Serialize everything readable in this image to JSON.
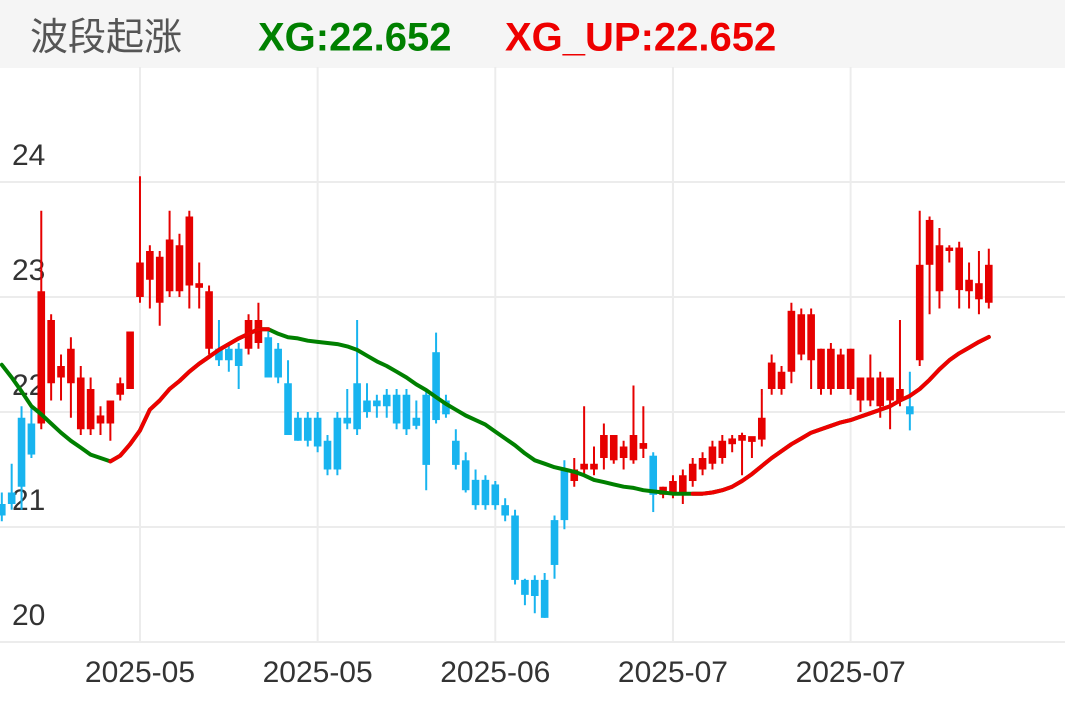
{
  "chart_data": {
    "type": "candlestick",
    "title": "波段起涨",
    "legend": [
      {
        "label": "XG:22.652",
        "color": "#008000"
      },
      {
        "label": "XG_UP:22.652",
        "color": "#ee0000"
      }
    ],
    "categories": [
      null,
      null,
      null,
      null,
      null,
      null,
      null,
      null,
      null,
      null,
      null,
      null,
      null,
      null,
      "2025-05",
      null,
      null,
      null,
      null,
      null,
      null,
      null,
      null,
      null,
      null,
      null,
      null,
      null,
      null,
      null,
      null,
      null,
      "2025-05",
      null,
      null,
      null,
      null,
      null,
      null,
      null,
      null,
      null,
      null,
      null,
      null,
      null,
      null,
      null,
      null,
      null,
      "2025-06",
      null,
      null,
      null,
      null,
      null,
      null,
      null,
      null,
      null,
      null,
      null,
      null,
      null,
      null,
      null,
      null,
      null,
      "2025-07",
      null,
      null,
      null,
      null,
      null,
      null,
      null,
      null,
      null,
      null,
      null,
      null,
      null,
      null,
      null,
      null,
      null,
      "2025-07",
      null,
      null,
      null,
      null,
      null,
      null,
      null,
      null,
      null,
      null,
      null,
      null,
      null,
      null
    ],
    "open": [
      21.2,
      21.3,
      21.95,
      21.9,
      21.9,
      22.25,
      22.3,
      22.25,
      21.85,
      21.85,
      21.9,
      21.9,
      22.15,
      22.2,
      23.0,
      23.15,
      22.95,
      23.05,
      23.05,
      23.1,
      23.08,
      22.55,
      22.55,
      22.55,
      22.55,
      22.55,
      22.6,
      22.65,
      22.55,
      22.25,
      21.95,
      21.95,
      21.95,
      21.75,
      21.95,
      21.95,
      22.25,
      22.1,
      22.1,
      22.15,
      22.15,
      22.15,
      21.95,
      22.15,
      22.52,
      22.1,
      21.75,
      21.58,
      21.41,
      21.41,
      21.37,
      21.19,
      21.1,
      20.54,
      20.54,
      20.54,
      21.06,
      21.5,
      21.4,
      21.5,
      21.5,
      21.6,
      21.58,
      21.6,
      21.58,
      21.68,
      21.62,
      21.28,
      21.3,
      21.3,
      21.4,
      21.5,
      21.55,
      21.6,
      21.72,
      21.75,
      21.74,
      21.76,
      22.2,
      22.2,
      22.35,
      22.5,
      22.45,
      22.2,
      22.2,
      22.2,
      22.2,
      22.1,
      22.1,
      22.05,
      22.1,
      22.1,
      22.05,
      22.45,
      23.28,
      23.05,
      23.4,
      23.06,
      23.05,
      22.98,
      22.95
    ],
    "high": [
      21.3,
      21.55,
      22.05,
      22.05,
      23.75,
      22.85,
      22.5,
      22.65,
      22.4,
      22.3,
      22.05,
      22.1,
      22.3,
      22.7,
      24.05,
      23.45,
      23.4,
      23.75,
      23.55,
      23.75,
      23.3,
      23.1,
      22.8,
      22.6,
      22.6,
      22.85,
      22.95,
      22.7,
      22.6,
      22.45,
      22.0,
      22.0,
      22.0,
      21.8,
      22.0,
      22.2,
      22.8,
      22.25,
      22.15,
      22.2,
      22.2,
      22.2,
      22.1,
      22.2,
      22.69,
      22.15,
      21.85,
      21.65,
      21.5,
      21.45,
      21.4,
      21.25,
      21.15,
      20.55,
      20.58,
      20.6,
      21.1,
      21.58,
      21.6,
      22.05,
      21.7,
      21.9,
      21.8,
      21.75,
      22.23,
      22.05,
      21.65,
      21.35,
      21.45,
      21.5,
      21.6,
      21.65,
      21.75,
      21.8,
      21.8,
      21.82,
      21.78,
      22.2,
      22.5,
      22.4,
      22.95,
      22.9,
      22.9,
      22.55,
      22.6,
      22.55,
      22.55,
      22.3,
      22.5,
      22.35,
      22.3,
      22.8,
      22.35,
      23.75,
      23.7,
      23.6,
      23.45,
      23.48,
      23.3,
      23.4,
      23.42
    ],
    "low": [
      21.05,
      21.15,
      21.15,
      21.6,
      21.85,
      22.1,
      22.1,
      21.95,
      21.8,
      21.8,
      21.8,
      21.75,
      22.1,
      22.2,
      22.95,
      22.9,
      22.75,
      23.0,
      23.0,
      22.9,
      22.9,
      22.5,
      22.4,
      22.35,
      22.2,
      22.5,
      22.55,
      22.3,
      22.25,
      21.8,
      21.75,
      21.7,
      21.65,
      21.45,
      21.45,
      21.85,
      21.8,
      21.95,
      21.95,
      21.95,
      21.85,
      21.8,
      21.85,
      21.32,
      21.9,
      21.95,
      21.5,
      21.3,
      21.15,
      21.15,
      21.15,
      21.05,
      20.5,
      20.32,
      20.25,
      20.21,
      20.55,
      20.98,
      21.35,
      21.45,
      21.45,
      21.5,
      21.55,
      21.5,
      21.55,
      21.6,
      21.13,
      21.25,
      21.25,
      21.2,
      21.35,
      21.45,
      21.5,
      21.55,
      21.65,
      21.45,
      21.6,
      21.7,
      22.15,
      22.15,
      22.25,
      22.45,
      22.2,
      22.15,
      22.15,
      22.2,
      22.15,
      22.0,
      22.05,
      21.95,
      21.85,
      22.05,
      21.84,
      22.4,
      22.85,
      22.9,
      23.3,
      22.9,
      22.9,
      22.85,
      22.9
    ],
    "close": [
      21.1,
      21.2,
      21.35,
      21.63,
      23.05,
      22.8,
      22.4,
      22.55,
      22.3,
      22.2,
      21.97,
      22.1,
      22.25,
      22.7,
      23.3,
      23.4,
      23.35,
      23.5,
      23.45,
      23.7,
      23.12,
      23.05,
      22.45,
      22.45,
      22.4,
      22.8,
      22.8,
      22.3,
      22.3,
      21.8,
      21.75,
      21.75,
      21.7,
      21.5,
      21.5,
      21.9,
      21.85,
      22.0,
      22.05,
      22.05,
      21.9,
      21.85,
      21.88,
      21.54,
      21.93,
      21.98,
      21.54,
      21.32,
      21.19,
      21.19,
      21.19,
      21.1,
      20.54,
      20.41,
      20.4,
      20.21,
      20.67,
      21.06,
      21.5,
      21.55,
      21.55,
      21.8,
      21.8,
      21.7,
      21.8,
      21.73,
      21.28,
      21.35,
      21.4,
      21.45,
      21.55,
      21.6,
      21.7,
      21.75,
      21.77,
      21.8,
      21.79,
      21.95,
      22.43,
      22.35,
      22.88,
      22.85,
      22.85,
      22.55,
      22.55,
      22.5,
      22.55,
      22.3,
      22.3,
      22.3,
      22.3,
      22.2,
      21.98,
      23.28,
      23.67,
      23.45,
      23.43,
      23.43,
      23.15,
      23.12,
      23.28
    ],
    "up_color": "#e60000",
    "down_color": "#18b4ef",
    "series": [
      {
        "name": "XG",
        "color": "#008000",
        "values": [
          22.41,
          22.3,
          22.18,
          22.05,
          21.98,
          21.9,
          21.82,
          21.75,
          21.69,
          21.63,
          21.6,
          21.57,
          21.62,
          21.72,
          21.84,
          22.02,
          22.1,
          22.2,
          22.27,
          22.35,
          22.42,
          22.48,
          22.54,
          22.59,
          22.64,
          22.68,
          22.72,
          22.72,
          22.68,
          22.65,
          22.64,
          22.62,
          22.61,
          22.6,
          22.59,
          22.57,
          22.54,
          22.49,
          22.44,
          22.4,
          22.35,
          22.3,
          22.24,
          22.19,
          22.13,
          22.07,
          22.02,
          21.97,
          21.93,
          21.89,
          21.83,
          21.77,
          21.71,
          21.64,
          21.58,
          21.55,
          21.52,
          21.5,
          21.48,
          21.45,
          21.41,
          21.39,
          21.37,
          21.35,
          21.34,
          21.32,
          21.31,
          21.3,
          21.29,
          21.29,
          21.29,
          21.29,
          21.3,
          21.32,
          21.35,
          21.4,
          21.46,
          21.53,
          21.6,
          21.66,
          21.72,
          21.77,
          21.82,
          21.85,
          21.88,
          21.91,
          21.93,
          21.96,
          21.99,
          22.02,
          22.05,
          22.1,
          22.14,
          22.2,
          22.28,
          22.37,
          22.45,
          22.51,
          22.56,
          22.61,
          22.652
        ]
      },
      {
        "name": "XG_UP",
        "color": "#ee0000",
        "values": [
          null,
          null,
          null,
          null,
          null,
          null,
          null,
          null,
          null,
          null,
          null,
          21.57,
          21.62,
          21.72,
          21.84,
          22.02,
          22.1,
          22.2,
          22.27,
          22.35,
          22.42,
          22.48,
          22.54,
          22.59,
          22.64,
          22.68,
          22.72,
          22.72,
          null,
          null,
          null,
          null,
          null,
          null,
          null,
          null,
          null,
          null,
          null,
          null,
          null,
          null,
          null,
          null,
          null,
          null,
          null,
          null,
          null,
          null,
          null,
          null,
          null,
          null,
          null,
          null,
          null,
          null,
          null,
          null,
          null,
          null,
          null,
          null,
          null,
          null,
          null,
          null,
          null,
          null,
          21.29,
          21.29,
          21.3,
          21.32,
          21.35,
          21.4,
          21.46,
          21.53,
          21.6,
          21.66,
          21.72,
          21.77,
          21.82,
          21.85,
          21.88,
          21.91,
          21.93,
          21.96,
          21.99,
          22.02,
          22.05,
          22.1,
          22.14,
          22.2,
          22.28,
          22.37,
          22.45,
          22.51,
          22.56,
          22.61,
          22.652
        ]
      }
    ],
    "ylim": [
      20,
      25
    ],
    "yticks": [
      20,
      21,
      22,
      23,
      24
    ],
    "grid": true
  }
}
